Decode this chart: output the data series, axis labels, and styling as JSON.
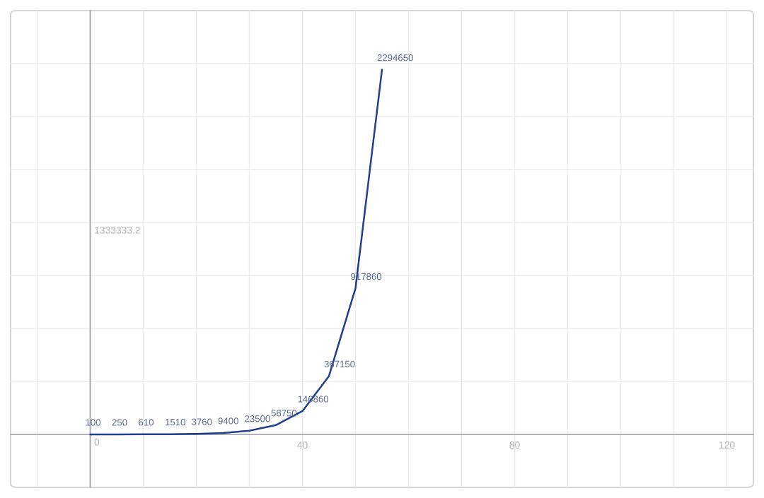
{
  "chart_data": {
    "type": "line",
    "x": [
      0,
      5,
      10,
      15,
      20,
      25,
      30,
      35,
      40,
      45,
      50,
      55
    ],
    "series": [
      {
        "color": "#1f3f8f",
        "values": [
          100,
          250,
          610,
          1510,
          3760,
          9400,
          23500,
          58750,
          146860,
          367150,
          917860,
          2294650
        ]
      }
    ],
    "data_labels": true,
    "xlim": [
      -15,
      125
    ],
    "ylim": [
      -333333.3,
      2666666.4
    ],
    "xticks": [
      {
        "value": -10,
        "label": null
      },
      {
        "value": 0,
        "label": null
      },
      {
        "value": 10,
        "label": null
      },
      {
        "value": 20,
        "label": null
      },
      {
        "value": 30,
        "label": null
      },
      40,
      {
        "value": 50,
        "label": null
      },
      {
        "value": 60,
        "label": null
      },
      {
        "value": 70,
        "label": null
      },
      80,
      {
        "value": 90,
        "label": null
      },
      {
        "value": 100,
        "label": null
      },
      {
        "value": 110,
        "label": null
      },
      120
    ],
    "yticks": [
      0,
      {
        "value": 333333.3,
        "label": null
      },
      {
        "value": 666666.6,
        "label": null
      },
      {
        "value": 999999.9,
        "label": null
      },
      1333333.2,
      {
        "value": 1666666.5,
        "label": null
      },
      {
        "value": 1999999.8,
        "label": null
      },
      {
        "value": 2333333.1,
        "label": null
      }
    ],
    "grid": true
  }
}
